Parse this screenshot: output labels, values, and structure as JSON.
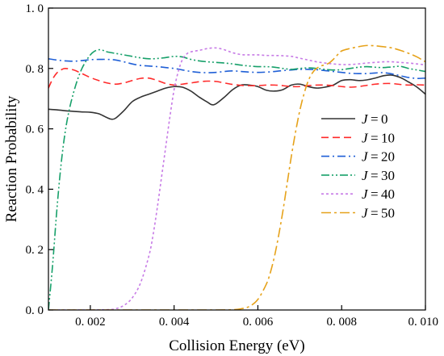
{
  "chart_data": {
    "type": "line",
    "xlabel": "Collision Energy (eV)",
    "ylabel": "Reaction Probability",
    "xlim": [
      0.001,
      0.01
    ],
    "ylim": [
      0.0,
      1.0
    ],
    "x_ticks": [
      0.002,
      0.004,
      0.006,
      0.008,
      0.01
    ],
    "x_tick_labels": [
      "0. 002",
      "0. 004",
      "0. 006",
      "0. 008",
      "0. 010"
    ],
    "y_ticks": [
      0.0,
      0.2,
      0.4,
      0.6,
      0.8,
      1.0
    ],
    "y_tick_labels": [
      "0. 0",
      "0. 2",
      "0. 4",
      "0. 6",
      "0. 8",
      "1. 0"
    ],
    "grid": false,
    "legend_position": "right-middle",
    "series": [
      {
        "name": "J = 0",
        "legend_var": "J",
        "legend_value": "= 0",
        "color": "#333333",
        "dash": "solid",
        "x": [
          0.001,
          0.0012,
          0.0014,
          0.0016,
          0.0018,
          0.002,
          0.0022,
          0.0024,
          0.0025,
          0.0026,
          0.0028,
          0.003,
          0.0032,
          0.0034,
          0.0036,
          0.0038,
          0.004,
          0.0042,
          0.0044,
          0.0046,
          0.0048,
          0.0049,
          0.005,
          0.0052,
          0.0054,
          0.0056,
          0.0058,
          0.006,
          0.0062,
          0.0064,
          0.0066,
          0.0068,
          0.007,
          0.0072,
          0.0074,
          0.0076,
          0.0078,
          0.008,
          0.0082,
          0.0084,
          0.0086,
          0.0088,
          0.009,
          0.0092,
          0.0094,
          0.0096,
          0.0098,
          0.01
        ],
        "y": [
          0.665,
          0.663,
          0.66,
          0.658,
          0.656,
          0.655,
          0.65,
          0.637,
          0.632,
          0.635,
          0.66,
          0.69,
          0.705,
          0.715,
          0.725,
          0.735,
          0.74,
          0.738,
          0.725,
          0.705,
          0.688,
          0.68,
          0.683,
          0.705,
          0.73,
          0.745,
          0.745,
          0.74,
          0.728,
          0.725,
          0.73,
          0.745,
          0.748,
          0.74,
          0.735,
          0.738,
          0.745,
          0.76,
          0.763,
          0.76,
          0.762,
          0.768,
          0.776,
          0.778,
          0.77,
          0.755,
          0.738,
          0.715
        ]
      },
      {
        "name": "J = 10",
        "legend_var": "J",
        "legend_value": "= 10",
        "color": "#ff2a2a",
        "dash": "dashed",
        "x": [
          0.001,
          0.0011,
          0.0012,
          0.0013,
          0.0014,
          0.0016,
          0.0018,
          0.002,
          0.0022,
          0.0024,
          0.0026,
          0.0028,
          0.003,
          0.0032,
          0.0034,
          0.0036,
          0.0038,
          0.004,
          0.0042,
          0.0044,
          0.0046,
          0.0048,
          0.005,
          0.0052,
          0.0054,
          0.0056,
          0.0058,
          0.006,
          0.0062,
          0.0064,
          0.0066,
          0.0068,
          0.007,
          0.0072,
          0.0074,
          0.0076,
          0.0078,
          0.008,
          0.0082,
          0.0084,
          0.0086,
          0.0088,
          0.009,
          0.0092,
          0.0094,
          0.0096,
          0.0098,
          0.01
        ],
        "y": [
          0.735,
          0.765,
          0.785,
          0.795,
          0.8,
          0.795,
          0.783,
          0.77,
          0.76,
          0.752,
          0.748,
          0.752,
          0.76,
          0.767,
          0.768,
          0.76,
          0.75,
          0.745,
          0.748,
          0.752,
          0.756,
          0.758,
          0.757,
          0.752,
          0.747,
          0.744,
          0.743,
          0.743,
          0.745,
          0.745,
          0.743,
          0.74,
          0.74,
          0.743,
          0.745,
          0.745,
          0.743,
          0.74,
          0.738,
          0.74,
          0.744,
          0.748,
          0.75,
          0.75,
          0.747,
          0.745,
          0.746,
          0.745
        ]
      },
      {
        "name": "J = 20",
        "legend_var": "J",
        "legend_value": "= 20",
        "color": "#1f5fd6",
        "dash": "dashdot",
        "x": [
          0.001,
          0.0012,
          0.0014,
          0.0016,
          0.0018,
          0.002,
          0.0022,
          0.0024,
          0.0026,
          0.0028,
          0.003,
          0.0032,
          0.0034,
          0.0036,
          0.0038,
          0.004,
          0.0042,
          0.0044,
          0.0046,
          0.0048,
          0.005,
          0.0052,
          0.0054,
          0.0056,
          0.0058,
          0.006,
          0.0062,
          0.0064,
          0.0066,
          0.0068,
          0.007,
          0.0072,
          0.0074,
          0.0076,
          0.0078,
          0.008,
          0.0082,
          0.0084,
          0.0086,
          0.0088,
          0.009,
          0.0092,
          0.0094,
          0.0096,
          0.0098,
          0.01
        ],
        "y": [
          0.832,
          0.828,
          0.825,
          0.824,
          0.826,
          0.829,
          0.83,
          0.83,
          0.828,
          0.822,
          0.815,
          0.81,
          0.808,
          0.806,
          0.803,
          0.8,
          0.795,
          0.79,
          0.787,
          0.786,
          0.787,
          0.79,
          0.792,
          0.79,
          0.788,
          0.787,
          0.788,
          0.79,
          0.793,
          0.795,
          0.797,
          0.797,
          0.796,
          0.793,
          0.79,
          0.787,
          0.784,
          0.783,
          0.783,
          0.785,
          0.786,
          0.782,
          0.776,
          0.77,
          0.767,
          0.768
        ]
      },
      {
        "name": "J = 30",
        "legend_var": "J",
        "legend_value": "= 30",
        "color": "#17a06a",
        "dash": "dashdotdot",
        "x": [
          0.001,
          0.0011,
          0.0012,
          0.0013,
          0.0014,
          0.0015,
          0.0016,
          0.0017,
          0.0018,
          0.0019,
          0.002,
          0.0021,
          0.0022,
          0.0023,
          0.0024,
          0.0026,
          0.0028,
          0.003,
          0.0032,
          0.0034,
          0.0036,
          0.0038,
          0.004,
          0.0042,
          0.0044,
          0.0046,
          0.0048,
          0.005,
          0.0052,
          0.0054,
          0.0056,
          0.0058,
          0.006,
          0.0062,
          0.0064,
          0.0066,
          0.0068,
          0.007,
          0.0072,
          0.0074,
          0.0076,
          0.0078,
          0.008,
          0.0082,
          0.0084,
          0.0086,
          0.0088,
          0.009,
          0.0092,
          0.0094,
          0.0096,
          0.0098,
          0.01
        ],
        "y": [
          0.0,
          0.15,
          0.33,
          0.48,
          0.59,
          0.665,
          0.72,
          0.765,
          0.8,
          0.825,
          0.845,
          0.857,
          0.862,
          0.86,
          0.855,
          0.85,
          0.845,
          0.84,
          0.835,
          0.832,
          0.833,
          0.836,
          0.84,
          0.838,
          0.83,
          0.825,
          0.822,
          0.82,
          0.818,
          0.815,
          0.811,
          0.808,
          0.806,
          0.806,
          0.804,
          0.8,
          0.797,
          0.8,
          0.802,
          0.8,
          0.797,
          0.795,
          0.796,
          0.8,
          0.804,
          0.806,
          0.804,
          0.803,
          0.805,
          0.807,
          0.8,
          0.795,
          0.79
        ]
      },
      {
        "name": "J = 40",
        "legend_var": "J",
        "legend_value": "= 40",
        "color": "#c77be6",
        "dash": "dotted",
        "x": [
          0.001,
          0.002,
          0.0024,
          0.0026,
          0.0028,
          0.003,
          0.0032,
          0.0034,
          0.0035,
          0.0036,
          0.0037,
          0.0038,
          0.0039,
          0.004,
          0.0041,
          0.0042,
          0.0043,
          0.0044,
          0.0046,
          0.0048,
          0.005,
          0.0052,
          0.0054,
          0.0056,
          0.0058,
          0.006,
          0.0062,
          0.0064,
          0.0066,
          0.0068,
          0.007,
          0.0072,
          0.0074,
          0.0076,
          0.0078,
          0.008,
          0.0082,
          0.0084,
          0.0086,
          0.0088,
          0.009,
          0.0092,
          0.0094,
          0.0096,
          0.0098,
          0.01
        ],
        "y": [
          0.0,
          0.0,
          0.001,
          0.004,
          0.015,
          0.04,
          0.09,
          0.18,
          0.25,
          0.34,
          0.44,
          0.54,
          0.64,
          0.73,
          0.79,
          0.83,
          0.848,
          0.855,
          0.86,
          0.866,
          0.868,
          0.862,
          0.852,
          0.846,
          0.845,
          0.845,
          0.843,
          0.843,
          0.842,
          0.84,
          0.834,
          0.828,
          0.822,
          0.818,
          0.815,
          0.813,
          0.813,
          0.815,
          0.818,
          0.82,
          0.822,
          0.822,
          0.82,
          0.818,
          0.815,
          0.812
        ]
      },
      {
        "name": "J = 50",
        "legend_var": "J",
        "legend_value": "= 50",
        "color": "#e6a21a",
        "dash": "dashdotlong",
        "x": [
          0.001,
          0.003,
          0.005,
          0.0054,
          0.0056,
          0.0058,
          0.006,
          0.0062,
          0.0063,
          0.0064,
          0.0065,
          0.0066,
          0.0067,
          0.0068,
          0.0069,
          0.007,
          0.0071,
          0.0072,
          0.0073,
          0.0074,
          0.0075,
          0.0076,
          0.0077,
          0.0078,
          0.0079,
          0.008,
          0.0082,
          0.0084,
          0.0086,
          0.0088,
          0.009,
          0.0092,
          0.0094,
          0.0096,
          0.0098,
          0.01
        ],
        "y": [
          0.0,
          0.0,
          0.0,
          0.001,
          0.004,
          0.012,
          0.035,
          0.085,
          0.125,
          0.18,
          0.25,
          0.33,
          0.42,
          0.51,
          0.59,
          0.66,
          0.715,
          0.758,
          0.785,
          0.8,
          0.808,
          0.812,
          0.818,
          0.83,
          0.845,
          0.858,
          0.866,
          0.872,
          0.876,
          0.875,
          0.872,
          0.868,
          0.86,
          0.85,
          0.838,
          0.822
        ]
      }
    ]
  }
}
